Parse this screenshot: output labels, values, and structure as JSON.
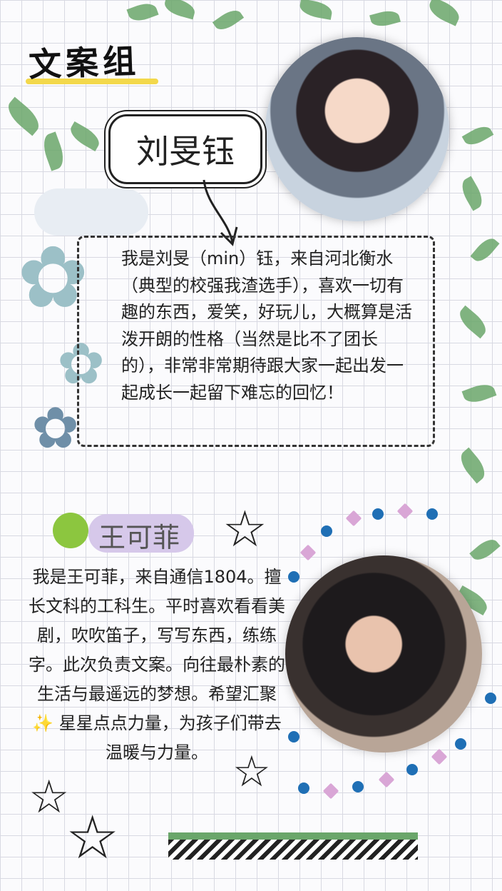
{
  "header": {
    "title": "文案组"
  },
  "member1": {
    "name": "刘旻钰",
    "intro": "我是刘旻（min）钰，来自河北衡水（典型的校强我渣选手），喜欢一切有趣的东西，爱笑，好玩儿，大概算是活泼开朗的性格（当然是比不了团长的），非常非常期待跟大家一起出发一起成长一起留下难忘的回忆！"
  },
  "member2": {
    "name": "王可菲",
    "intro": "我是王可菲，来自通信1804。擅长文科的工科生。平时喜欢看看美剧，吹吹笛子，写写东西，练练字。此次负责文案。向往最朴素的生活与最遥远的梦想。希望汇聚✨ 星星点点力量，为孩子们带去温暖与力量。"
  },
  "colors": {
    "accent_yellow": "#f3d84b",
    "green_dot": "#8cc63f",
    "name_highlight": "#d6c8ea",
    "leaf": "#6aa66a",
    "blue_dot": "#1f6fb5",
    "pink_diamond": "#d9a6d6"
  }
}
